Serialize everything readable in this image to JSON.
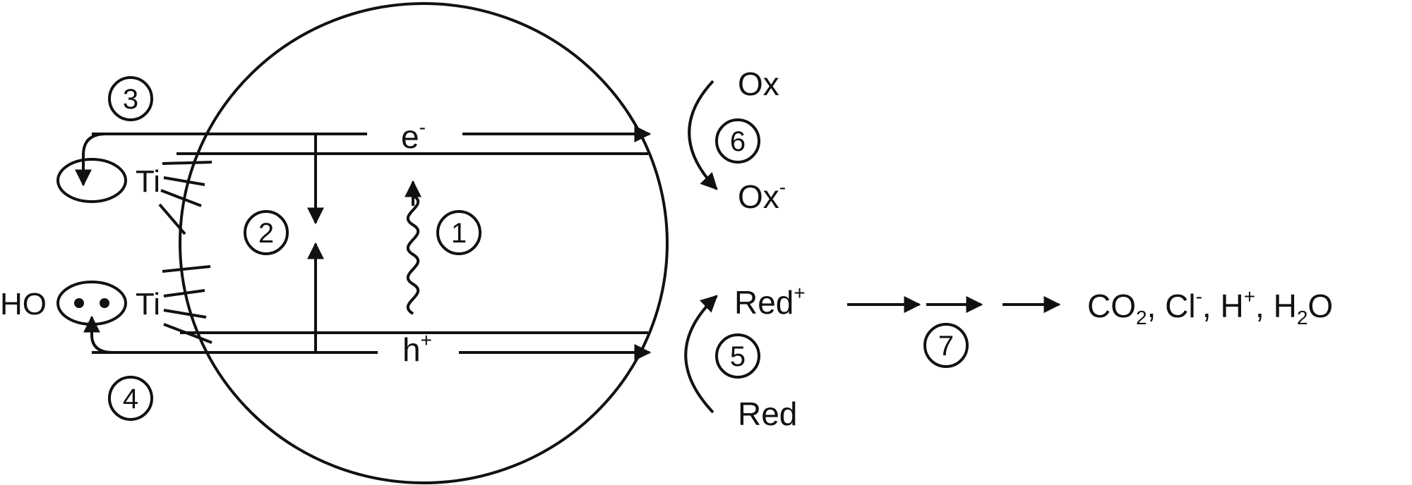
{
  "labels": {
    "electron": "e",
    "electron_sup": "-",
    "hole": "h",
    "hole_sup": "+",
    "ti_top": "Ti",
    "ti_bottom": "Ti",
    "ho": "HO",
    "ox": "Ox",
    "ox_minus": "Ox",
    "ox_minus_sup": "-",
    "red_plus": "Red",
    "red_plus_sup": "+",
    "red": "Red"
  },
  "products": {
    "co2_a": "CO",
    "co2_sub": "2",
    "co2_b": ", Cl",
    "cl_sup": "-",
    "h_a": ", H",
    "h_sup": "+",
    "h2o_a": ", H",
    "h2o_sub": "2",
    "h2o_b": "O"
  },
  "steps": [
    "1",
    "2",
    "3",
    "4",
    "5",
    "6",
    "7"
  ]
}
